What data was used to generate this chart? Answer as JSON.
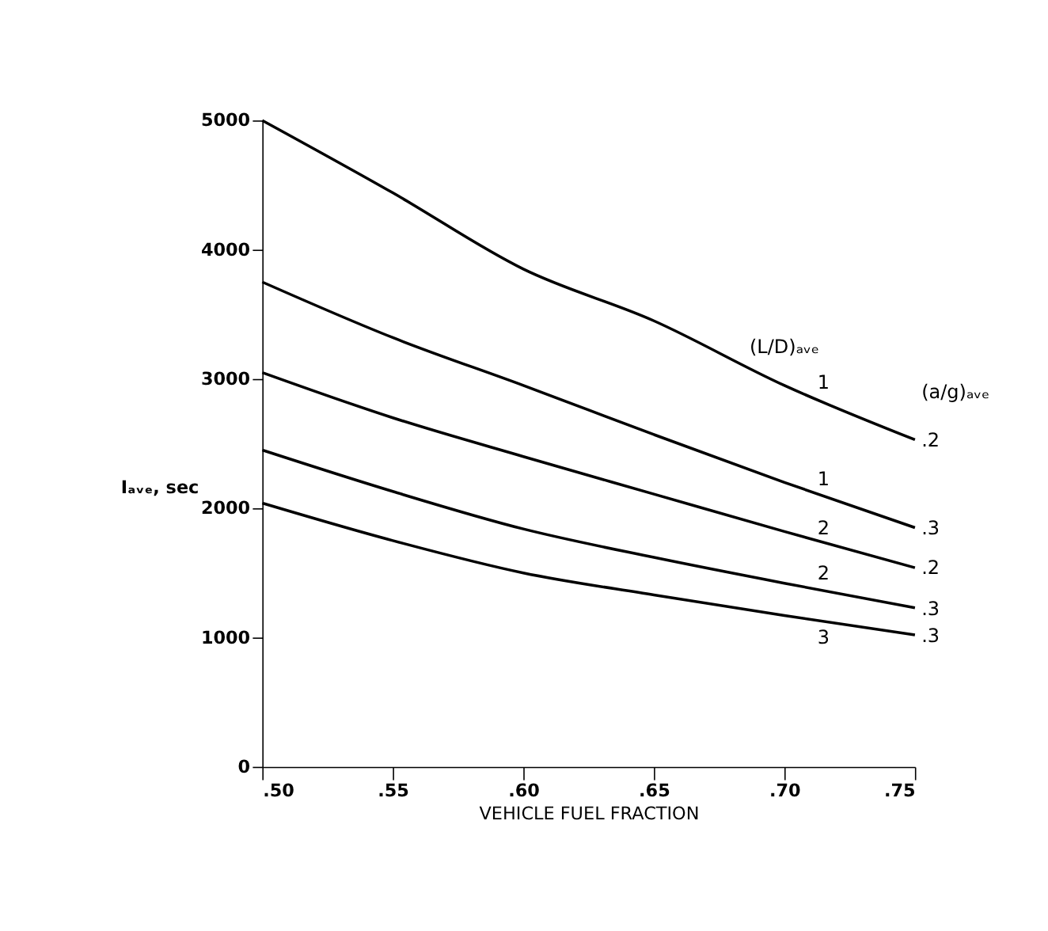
{
  "chart_data": {
    "type": "line",
    "xlabel": "VEHICLE FUEL FRACTION",
    "ylabel": "Iₐᵥₑ, sec",
    "x": [
      0.5,
      0.55,
      0.6,
      0.65,
      0.7,
      0.75
    ],
    "series": [
      {
        "color": "#000000",
        "values": [
          5000,
          4440,
          3850,
          3450,
          2950,
          2530
        ]
      },
      {
        "color": "#000000",
        "values": [
          3750,
          3320,
          2950,
          2570,
          2200,
          1850
        ]
      },
      {
        "color": "#000000",
        "values": [
          3050,
          2700,
          2400,
          2110,
          1820,
          1540
        ]
      },
      {
        "color": "#000000",
        "values": [
          2450,
          2130,
          1840,
          1620,
          1420,
          1230
        ]
      },
      {
        "color": "#000000",
        "values": [
          2040,
          1750,
          1500,
          1330,
          1170,
          1020
        ]
      }
    ],
    "xlim": [
      0.5,
      0.75
    ],
    "ylim": [
      0,
      5000
    ],
    "xticks": [
      {
        "value": 0.5,
        "label": ".50"
      },
      {
        "value": 0.55,
        "label": ".55"
      },
      {
        "value": 0.6,
        "label": ".60"
      },
      {
        "value": 0.65,
        "label": ".65"
      },
      {
        "value": 0.7,
        "label": ".70"
      },
      {
        "value": 0.75,
        "label": ".75"
      }
    ],
    "yticks": [
      0,
      1000,
      2000,
      3000,
      4000,
      5000
    ],
    "grid": false,
    "legend": false,
    "marker": "none",
    "line_style": "solid",
    "annotations": [
      "(L/D)ₐᵥₑ",
      "(a/g)ₐᵥₑ",
      "1",
      "1",
      "2",
      "2",
      "3",
      ".2",
      ".3",
      ".2",
      ".3",
      ".3"
    ]
  }
}
